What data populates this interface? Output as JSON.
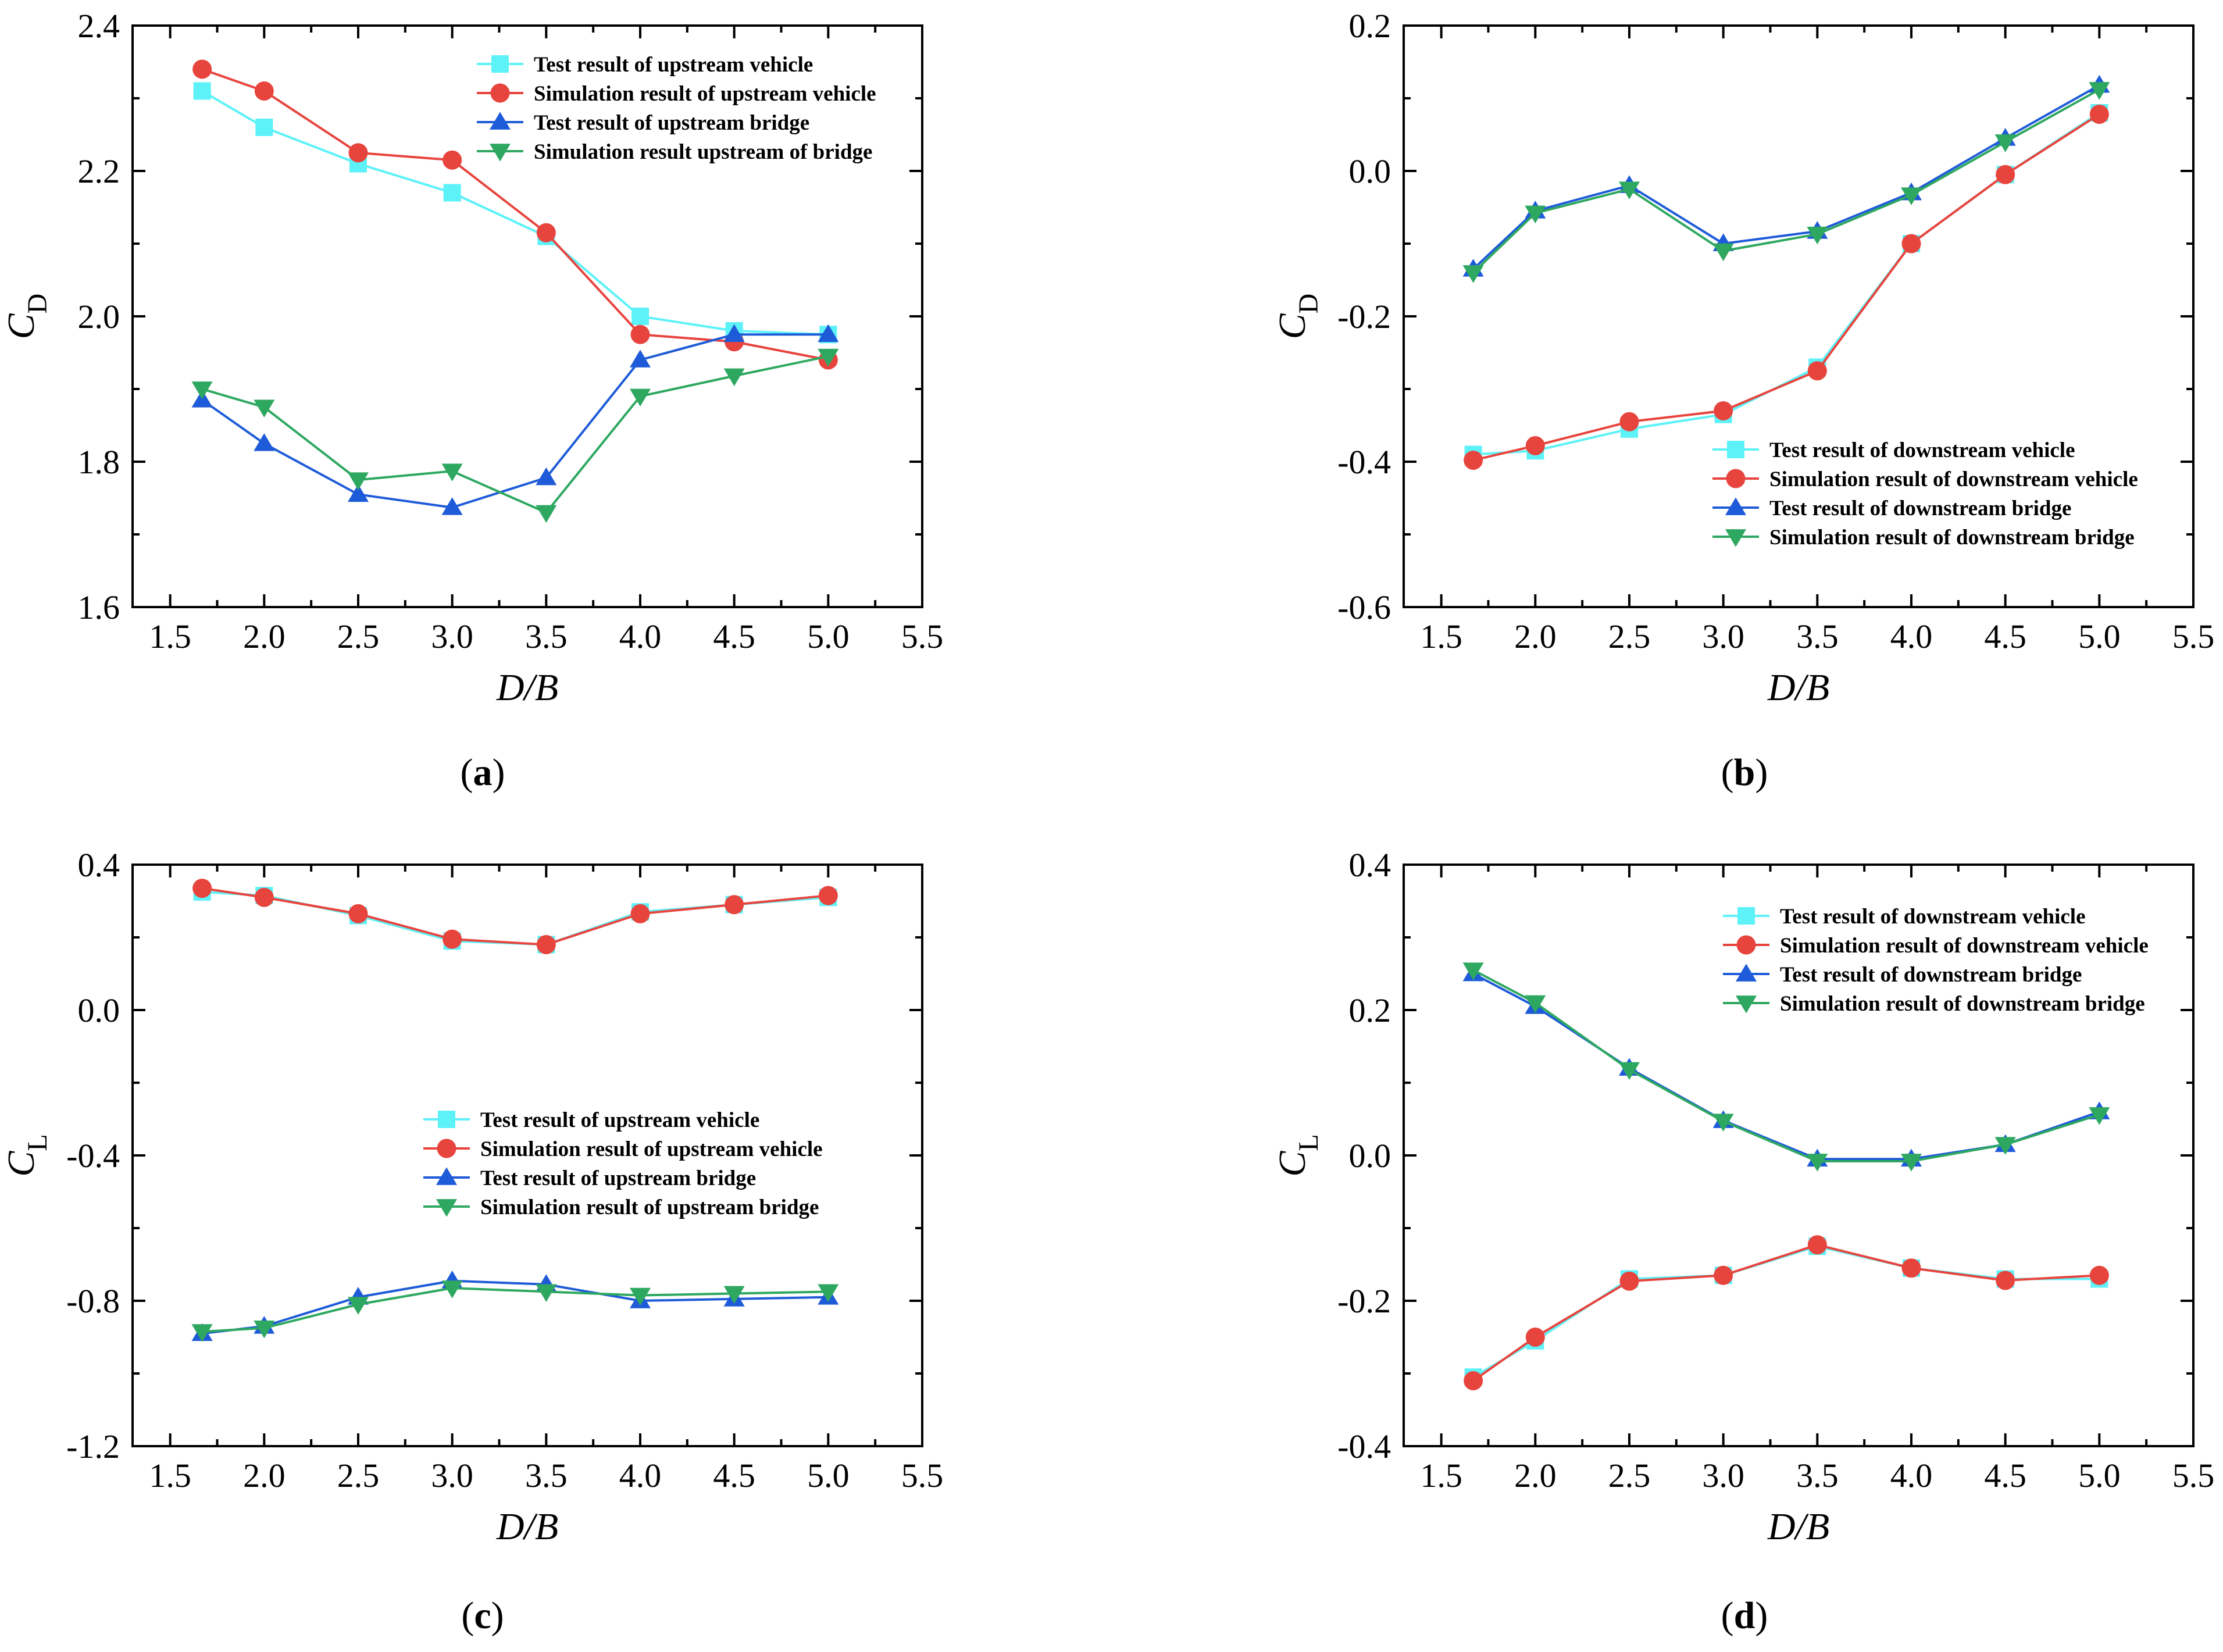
{
  "figure": {
    "panel_labels": [
      "a",
      "b",
      "c",
      "d"
    ]
  },
  "colors": {
    "test_vehicle": "#5CF2F8",
    "sim_vehicle": "#E8443E",
    "test_bridge": "#1E5BD8",
    "sim_bridge": "#2EA860",
    "axis": "#000000"
  },
  "chart_data": [
    {
      "id": "a",
      "type": "line",
      "panel_label": "a",
      "xlabel": "D/B",
      "ylabel_main": "C",
      "ylabel_sub": "D",
      "xlim": [
        1.3,
        5.5
      ],
      "ylim": [
        1.6,
        2.4
      ],
      "xticks": [
        "1.5",
        "2.0",
        "2.5",
        "3.0",
        "3.5",
        "4.0",
        "4.5",
        "5.0",
        "5.5"
      ],
      "yticks": [
        "1.6",
        "1.8",
        "2.0",
        "2.2",
        "2.4"
      ],
      "legend_position": "top-right",
      "x": [
        1.67,
        2.0,
        2.5,
        3.0,
        3.5,
        4.0,
        4.5,
        5.0
      ],
      "series": [
        {
          "name": "Test result of upstream vehicle",
          "marker": "square",
          "color_key": "test_vehicle",
          "values": [
            2.31,
            2.26,
            2.21,
            2.17,
            2.11,
            2.0,
            1.98,
            1.975
          ]
        },
        {
          "name": "Simulation result of upstream vehicle",
          "marker": "circle",
          "color_key": "sim_vehicle",
          "values": [
            2.34,
            2.31,
            2.225,
            2.215,
            2.115,
            1.975,
            1.965,
            1.94
          ]
        },
        {
          "name": "Test result of upstream bridge",
          "marker": "triangle-up",
          "color_key": "test_bridge",
          "values": [
            1.885,
            1.825,
            1.755,
            1.737,
            1.778,
            1.94,
            1.975,
            1.975
          ]
        },
        {
          "name": "Simulation result upstream of bridge",
          "marker": "triangle-down",
          "color_key": "sim_bridge",
          "values": [
            1.9,
            1.875,
            1.775,
            1.787,
            1.73,
            1.89,
            1.918,
            1.945
          ]
        }
      ]
    },
    {
      "id": "b",
      "type": "line",
      "panel_label": "b",
      "xlabel": "D/B",
      "ylabel_main": "C",
      "ylabel_sub": "D",
      "xlim": [
        1.3,
        5.5
      ],
      "ylim": [
        -0.6,
        0.2
      ],
      "xticks": [
        "1.5",
        "2.0",
        "2.5",
        "3.0",
        "3.5",
        "4.0",
        "4.5",
        "5.0",
        "5.5"
      ],
      "yticks": [
        "-0.6",
        "-0.4",
        "-0.2",
        "0.0",
        "0.2"
      ],
      "legend_position": "bottom-right",
      "x": [
        1.67,
        2.0,
        2.5,
        3.0,
        3.5,
        4.0,
        4.5,
        5.0
      ],
      "series": [
        {
          "name": "Test result of downstream vehicle",
          "marker": "square",
          "color_key": "test_vehicle",
          "values": [
            -0.39,
            -0.385,
            -0.355,
            -0.335,
            -0.27,
            -0.1,
            -0.005,
            0.08
          ]
        },
        {
          "name": "Simulation result of downstream vehicle",
          "marker": "circle",
          "color_key": "sim_vehicle",
          "values": [
            -0.398,
            -0.378,
            -0.345,
            -0.33,
            -0.275,
            -0.1,
            -0.005,
            0.078
          ]
        },
        {
          "name": "Test result of downstream bridge",
          "marker": "triangle-up",
          "color_key": "test_bridge",
          "values": [
            -0.135,
            -0.055,
            -0.02,
            -0.1,
            -0.083,
            -0.03,
            0.045,
            0.118
          ]
        },
        {
          "name": "Simulation result of downstream bridge",
          "marker": "triangle-down",
          "color_key": "sim_bridge",
          "values": [
            -0.14,
            -0.058,
            -0.025,
            -0.11,
            -0.087,
            -0.033,
            0.04,
            0.112
          ]
        }
      ]
    },
    {
      "id": "c",
      "type": "line",
      "panel_label": "c",
      "xlabel": "D/B",
      "ylabel_main": "C",
      "ylabel_sub": "L",
      "xlim": [
        1.3,
        5.5
      ],
      "ylim": [
        -1.2,
        0.4
      ],
      "xticks": [
        "1.5",
        "2.0",
        "2.5",
        "3.0",
        "3.5",
        "4.0",
        "4.5",
        "5.0",
        "5.5"
      ],
      "yticks": [
        "-1.2",
        "-0.8",
        "-0.4",
        "0.0",
        "0.4"
      ],
      "legend_position": "center-left",
      "x": [
        1.67,
        2.0,
        2.5,
        3.0,
        3.5,
        4.0,
        4.5,
        5.0
      ],
      "series": [
        {
          "name": "Test result of upstream vehicle",
          "marker": "square",
          "color_key": "test_vehicle",
          "values": [
            0.325,
            0.315,
            0.26,
            0.19,
            0.18,
            0.27,
            0.29,
            0.31
          ]
        },
        {
          "name": "Simulation result of upstream vehicle",
          "marker": "circle",
          "color_key": "sim_vehicle",
          "values": [
            0.335,
            0.31,
            0.265,
            0.195,
            0.18,
            0.265,
            0.29,
            0.315
          ]
        },
        {
          "name": "Test result of upstream bridge",
          "marker": "triangle-up",
          "color_key": "test_bridge",
          "values": [
            -0.89,
            -0.87,
            -0.79,
            -0.745,
            -0.755,
            -0.8,
            -0.795,
            -0.79
          ]
        },
        {
          "name": "Simulation result of upstream bridge",
          "marker": "triangle-down",
          "color_key": "sim_bridge",
          "values": [
            -0.885,
            -0.875,
            -0.81,
            -0.765,
            -0.775,
            -0.785,
            -0.78,
            -0.775
          ]
        }
      ]
    },
    {
      "id": "d",
      "type": "line",
      "panel_label": "d",
      "xlabel": "D/B",
      "ylabel_main": "C",
      "ylabel_sub": "L",
      "xlim": [
        1.3,
        5.5
      ],
      "ylim": [
        -0.4,
        0.4
      ],
      "xticks": [
        "1.5",
        "2.0",
        "2.5",
        "3.0",
        "3.5",
        "4.0",
        "4.5",
        "5.0",
        "5.5"
      ],
      "yticks": [
        "-0.4",
        "-0.2",
        "0.0",
        "0.2",
        "0.4"
      ],
      "legend_position": "top-right",
      "x": [
        1.67,
        2.0,
        2.5,
        3.0,
        3.5,
        4.0,
        4.5,
        5.0
      ],
      "series": [
        {
          "name": "Test result of downstream vehicle",
          "marker": "square",
          "color_key": "test_vehicle",
          "values": [
            -0.305,
            -0.255,
            -0.17,
            -0.165,
            -0.125,
            -0.155,
            -0.17,
            -0.17
          ]
        },
        {
          "name": "Simulation result of downstream vehicle",
          "marker": "circle",
          "color_key": "sim_vehicle",
          "values": [
            -0.31,
            -0.25,
            -0.173,
            -0.165,
            -0.123,
            -0.155,
            -0.172,
            -0.165
          ]
        },
        {
          "name": "Test result of downstream bridge",
          "marker": "triangle-up",
          "color_key": "test_bridge",
          "values": [
            0.25,
            0.205,
            0.12,
            0.048,
            -0.005,
            -0.005,
            0.015,
            0.06
          ]
        },
        {
          "name": "Simulation result of downstream bridge",
          "marker": "triangle-down",
          "color_key": "sim_bridge",
          "values": [
            0.255,
            0.21,
            0.118,
            0.047,
            -0.008,
            -0.008,
            0.015,
            0.056
          ]
        }
      ]
    }
  ]
}
